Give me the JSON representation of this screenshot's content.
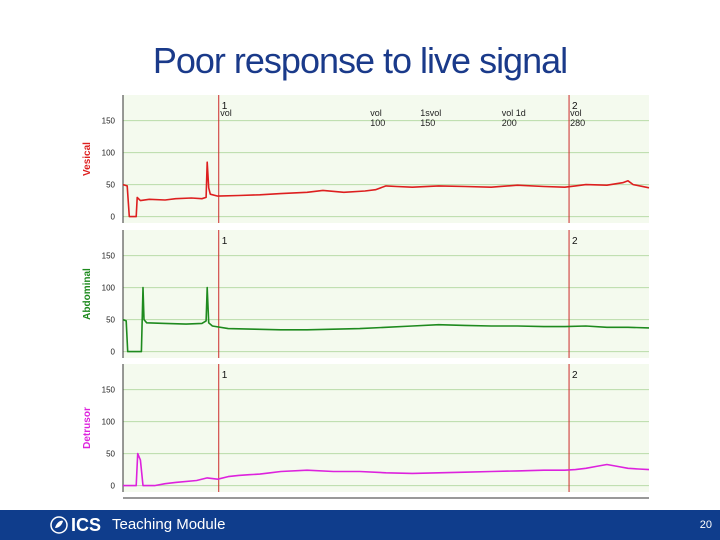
{
  "slide": {
    "title": "Poor response to live signal",
    "footer_label": "Teaching Module",
    "logo_text": "ICS",
    "page_number": "20"
  },
  "colors": {
    "title": "#1a3a8a",
    "footer_bg": "#0f3d8c",
    "panel_bg": "#f4faee",
    "grid": "#b9dba8",
    "event_line": "#cc2a2a",
    "vesical": "#dd1f1f",
    "abdominal": "#1e8a1e",
    "detrusor": "#dd22dd"
  },
  "chart_data": {
    "type": "line",
    "x_range": [
      0,
      100
    ],
    "y_ticks": [
      0,
      50,
      100,
      150
    ],
    "ylim": [
      -10,
      190
    ],
    "grid": true,
    "events": [
      {
        "x": 18.2,
        "marker": "",
        "label": "vol",
        "value": ""
      },
      {
        "x": 17.0,
        "marker": "1",
        "label": "",
        "value": ""
      }
    ],
    "marker_lines": [
      {
        "x": 18.2,
        "label": "1"
      },
      {
        "x": 84.8,
        "label": "2"
      }
    ],
    "annotations": [
      {
        "x": 18.5,
        "line1": "vol",
        "line2": ""
      },
      {
        "x": 47.0,
        "line1": "vol",
        "line2": "100"
      },
      {
        "x": 56.5,
        "line1": "1svol",
        "line2": "150"
      },
      {
        "x": 72.0,
        "line1": "vol  1d",
        "line2": "200"
      },
      {
        "x": 85.0,
        "line1": "vol",
        "line2": "280"
      }
    ],
    "series": [
      {
        "name": "Vesical",
        "color_key": "vesical",
        "points": [
          [
            0,
            50
          ],
          [
            0.8,
            48
          ],
          [
            1.2,
            0
          ],
          [
            2.5,
            0
          ],
          [
            2.7,
            30
          ],
          [
            3.3,
            25
          ],
          [
            5,
            27
          ],
          [
            8,
            26
          ],
          [
            10,
            28
          ],
          [
            13,
            29
          ],
          [
            15,
            28
          ],
          [
            15.8,
            30
          ],
          [
            16.0,
            85
          ],
          [
            16.3,
            45
          ],
          [
            16.6,
            35
          ],
          [
            18,
            32
          ],
          [
            22,
            33
          ],
          [
            26,
            34
          ],
          [
            30,
            36
          ],
          [
            35,
            38
          ],
          [
            38,
            41
          ],
          [
            42,
            38
          ],
          [
            46,
            40
          ],
          [
            48,
            42
          ],
          [
            50,
            48
          ],
          [
            52,
            47
          ],
          [
            55,
            46
          ],
          [
            60,
            48
          ],
          [
            65,
            47
          ],
          [
            70,
            46
          ],
          [
            75,
            49
          ],
          [
            80,
            47
          ],
          [
            84,
            46
          ],
          [
            86,
            48
          ],
          [
            88,
            50
          ],
          [
            92,
            49
          ],
          [
            95,
            53
          ],
          [
            96,
            56
          ],
          [
            97,
            50
          ],
          [
            100,
            45
          ]
        ]
      },
      {
        "name": "Abdominal",
        "color_key": "abdominal",
        "points": [
          [
            0,
            50
          ],
          [
            0.6,
            48
          ],
          [
            0.9,
            0
          ],
          [
            3.5,
            0
          ],
          [
            3.8,
            100
          ],
          [
            4.0,
            50
          ],
          [
            4.5,
            45
          ],
          [
            8,
            44
          ],
          [
            12,
            43
          ],
          [
            15,
            44
          ],
          [
            15.8,
            48
          ],
          [
            16.0,
            100
          ],
          [
            16.3,
            45
          ],
          [
            17,
            40
          ],
          [
            20,
            36
          ],
          [
            25,
            35
          ],
          [
            30,
            34
          ],
          [
            35,
            34
          ],
          [
            40,
            35
          ],
          [
            45,
            36
          ],
          [
            50,
            38
          ],
          [
            55,
            40
          ],
          [
            60,
            42
          ],
          [
            65,
            41
          ],
          [
            70,
            40
          ],
          [
            75,
            40
          ],
          [
            80,
            39
          ],
          [
            84,
            39
          ],
          [
            88,
            40
          ],
          [
            92,
            38
          ],
          [
            96,
            38
          ],
          [
            100,
            37
          ]
        ]
      },
      {
        "name": "Detrusor",
        "color_key": "detrusor",
        "points": [
          [
            0,
            0
          ],
          [
            2.5,
            0
          ],
          [
            2.8,
            50
          ],
          [
            3.3,
            40
          ],
          [
            3.8,
            0
          ],
          [
            6,
            0
          ],
          [
            8,
            3
          ],
          [
            10,
            5
          ],
          [
            14,
            8
          ],
          [
            16,
            12
          ],
          [
            18,
            10
          ],
          [
            20,
            14
          ],
          [
            22,
            16
          ],
          [
            24,
            17
          ],
          [
            26,
            18
          ],
          [
            28,
            20
          ],
          [
            30,
            22
          ],
          [
            35,
            24
          ],
          [
            40,
            22
          ],
          [
            45,
            22
          ],
          [
            50,
            20
          ],
          [
            55,
            19
          ],
          [
            60,
            20
          ],
          [
            65,
            21
          ],
          [
            70,
            22
          ],
          [
            75,
            23
          ],
          [
            80,
            24
          ],
          [
            84,
            24
          ],
          [
            86,
            25
          ],
          [
            88,
            27
          ],
          [
            90,
            30
          ],
          [
            92,
            33
          ],
          [
            94,
            30
          ],
          [
            96,
            27
          ],
          [
            98,
            26
          ],
          [
            100,
            25
          ]
        ]
      }
    ]
  }
}
